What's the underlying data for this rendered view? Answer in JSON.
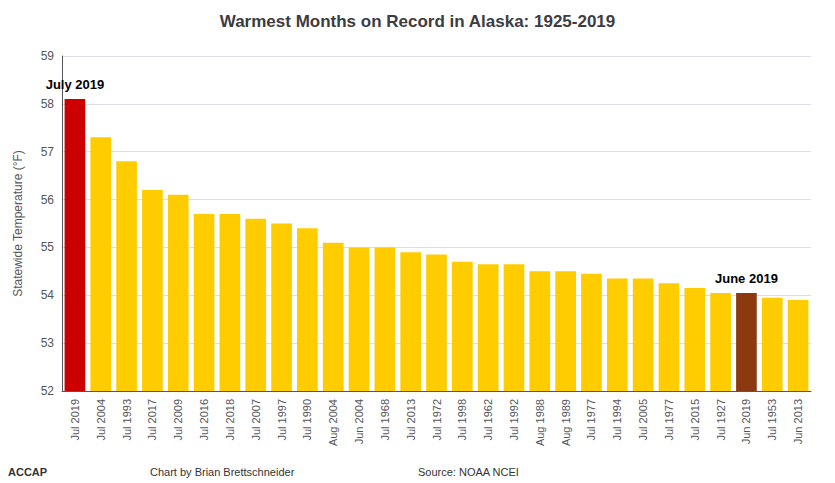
{
  "chart_data": {
    "type": "bar",
    "title": "Warmest Months on Record in Alaska: 1925-2019",
    "ylabel": "Statewide Temperature (°F)",
    "categories": [
      "Jul 2019",
      "Jul 2004",
      "Jul 1993",
      "Jul 2017",
      "Jul 2009",
      "Jul 2016",
      "Jul 2018",
      "Jul 2007",
      "Jul 1997",
      "Jul 1990",
      "Aug 2004",
      "Jun 2004",
      "Jul 1968",
      "Jul 2013",
      "Jul 1972",
      "Jul 1998",
      "Jul 1962",
      "Jul 1992",
      "Aug 1988",
      "Aug 1989",
      "Jul 1977",
      "Jul 1994",
      "Jul 2005",
      "Jul 1977",
      "Jul 2015",
      "Jul 1927",
      "Jun 2019",
      "Jul 1953",
      "Jun 2013"
    ],
    "values": [
      58.1,
      57.3,
      56.8,
      56.2,
      56.1,
      55.7,
      55.7,
      55.6,
      55.5,
      55.4,
      55.1,
      55.0,
      55.0,
      54.9,
      54.85,
      54.7,
      54.65,
      54.65,
      54.5,
      54.5,
      54.45,
      54.35,
      54.35,
      54.25,
      54.15,
      54.05,
      54.05,
      53.95,
      53.9
    ],
    "colors": [
      "#cc0000",
      "#ffcc00",
      "#ffcc00",
      "#ffcc00",
      "#ffcc00",
      "#ffcc00",
      "#ffcc00",
      "#ffcc00",
      "#ffcc00",
      "#ffcc00",
      "#ffcc00",
      "#ffcc00",
      "#ffcc00",
      "#ffcc00",
      "#ffcc00",
      "#ffcc00",
      "#ffcc00",
      "#ffcc00",
      "#ffcc00",
      "#ffcc00",
      "#ffcc00",
      "#ffcc00",
      "#ffcc00",
      "#ffcc00",
      "#ffcc00",
      "#ffcc00",
      "#8B3A0F",
      "#ffcc00",
      "#ffcc00"
    ],
    "ylim": [
      52,
      59
    ],
    "yticks": [
      52,
      53,
      54,
      55,
      56,
      57,
      58,
      59
    ],
    "grid": true,
    "annotations": [
      {
        "text": "July 2019",
        "category": "Jul 2019"
      },
      {
        "text": "June 2019",
        "category": "Jun 2019"
      }
    ],
    "footer": [
      "ACCAP",
      "Chart by Brian Brettschneider",
      "Source: NOAA NCEI"
    ]
  }
}
